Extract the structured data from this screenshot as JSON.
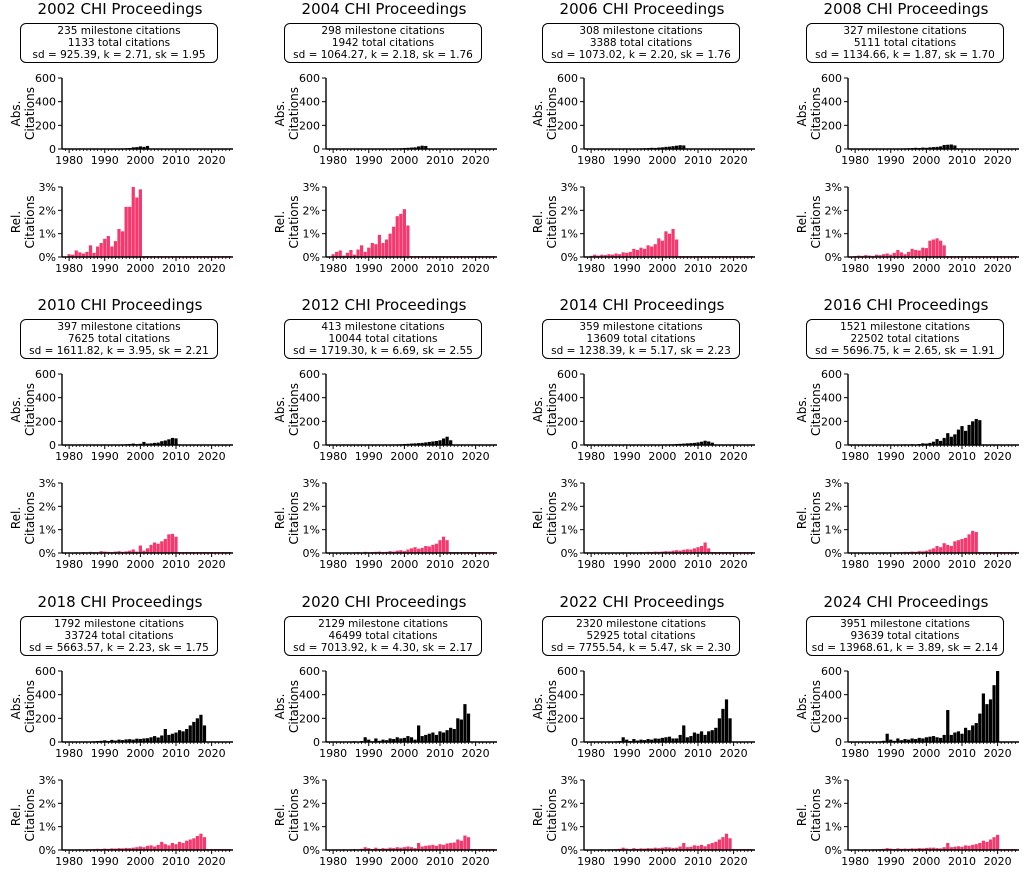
{
  "figure": {
    "abs_ylabel_lines": [
      "Abs.",
      "Citations"
    ],
    "rel_ylabel_lines": [
      "Rel.",
      "Citations"
    ],
    "abs_yticks": [
      "0",
      "200",
      "400",
      "600"
    ],
    "rel_yticks": [
      "0%",
      "1%",
      "2%",
      "3%"
    ],
    "xticks": [
      "1980",
      "1990",
      "2000",
      "2010",
      "2020"
    ],
    "abs_color": "#000000",
    "rel_color": "#f5386d"
  },
  "chart_data": [
    {
      "type": "bar",
      "title": "2002 CHI Proceedings",
      "stats": [
        "235 milestone citations",
        "1133 total citations",
        "sd = 925.39, k = 2.71, sk = 1.95"
      ],
      "x_start": 1980,
      "xlim": [
        1978,
        2026
      ],
      "abs_ylim": [
        0,
        600
      ],
      "rel_ylim": [
        0,
        3
      ],
      "abs": [
        0,
        0,
        0,
        0,
        0,
        0,
        0,
        0,
        0,
        0,
        0,
        1,
        2,
        2,
        3,
        5,
        6,
        8,
        14,
        16,
        22,
        18,
        26
      ],
      "rel": [
        0.12,
        0.1,
        0.28,
        0.2,
        0.15,
        0.22,
        0.5,
        0.18,
        0.45,
        0.6,
        0.78,
        0.9,
        0.45,
        0.68,
        1.2,
        1.1,
        2.15,
        2.15,
        3.0,
        2.55,
        2.9
      ]
    },
    {
      "type": "bar",
      "title": "2004 CHI Proceedings",
      "stats": [
        "298 milestone citations",
        "1942 total citations",
        "sd = 1064.27, k = 2.18, sk = 1.76"
      ],
      "x_start": 1980,
      "xlim": [
        1978,
        2026
      ],
      "abs_ylim": [
        0,
        600
      ],
      "rel_ylim": [
        0,
        3
      ],
      "abs": [
        0,
        0,
        0,
        0,
        0,
        0,
        0,
        0,
        0,
        0,
        0,
        0,
        0,
        1,
        2,
        3,
        4,
        5,
        4,
        6,
        8,
        10,
        12,
        14,
        22,
        28,
        26
      ],
      "rel": [
        0.12,
        0.22,
        0.28,
        0.06,
        0.18,
        0.3,
        0.1,
        0.32,
        0.5,
        0.22,
        0.4,
        0.6,
        0.55,
        0.95,
        0.6,
        0.75,
        1.0,
        1.3,
        1.75,
        1.85,
        2.05,
        1.35
      ]
    },
    {
      "type": "bar",
      "title": "2006 CHI Proceedings",
      "stats": [
        "308 milestone citations",
        "3388 total citations",
        "sd = 1073.02, k = 2.20, sk = 1.76"
      ],
      "x_start": 1980,
      "xlim": [
        1978,
        2026
      ],
      "abs_ylim": [
        0,
        600
      ],
      "rel_ylim": [
        0,
        3
      ],
      "abs": [
        0,
        0,
        0,
        0,
        0,
        0,
        0,
        0,
        0,
        1,
        2,
        2,
        3,
        4,
        5,
        6,
        8,
        10,
        9,
        12,
        14,
        18,
        20,
        24,
        28,
        32,
        30
      ],
      "rel": [
        0.05,
        0.1,
        0.06,
        0.1,
        0.08,
        0.12,
        0.1,
        0.15,
        0.12,
        0.2,
        0.18,
        0.22,
        0.35,
        0.3,
        0.4,
        0.35,
        0.5,
        0.45,
        0.55,
        0.8,
        0.7,
        1.1,
        1.0,
        1.2,
        0.75
      ]
    },
    {
      "type": "bar",
      "title": "2008 CHI Proceedings",
      "stats": [
        "327 milestone citations",
        "5111 total citations",
        "sd = 1134.66, k = 1.87, sk = 1.70"
      ],
      "x_start": 1980,
      "xlim": [
        1978,
        2026
      ],
      "abs_ylim": [
        0,
        600
      ],
      "rel_ylim": [
        0,
        3
      ],
      "abs": [
        0,
        0,
        0,
        0,
        0,
        0,
        0,
        0,
        0,
        0,
        0,
        2,
        3,
        4,
        5,
        6,
        8,
        10,
        8,
        12,
        10,
        14,
        16,
        18,
        22,
        34,
        36,
        38,
        30
      ],
      "rel": [
        0.04,
        0.06,
        0.05,
        0.08,
        0.06,
        0.05,
        0.1,
        0.08,
        0.12,
        0.15,
        0.1,
        0.18,
        0.3,
        0.2,
        0.12,
        0.22,
        0.35,
        0.3,
        0.28,
        0.4,
        0.38,
        0.7,
        0.75,
        0.8,
        0.7,
        0.5
      ]
    },
    {
      "type": "bar",
      "title": "2010 CHI Proceedings",
      "stats": [
        "397 milestone citations",
        "7625 total citations",
        "sd = 1611.82, k = 3.95, sk = 2.21"
      ],
      "x_start": 1980,
      "xlim": [
        1978,
        2026
      ],
      "abs_ylim": [
        0,
        600
      ],
      "rel_ylim": [
        0,
        3
      ],
      "abs": [
        0,
        0,
        0,
        0,
        0,
        0,
        0,
        0,
        0,
        0,
        0,
        1,
        2,
        3,
        4,
        5,
        6,
        8,
        12,
        7,
        10,
        26,
        12,
        14,
        18,
        20,
        32,
        38,
        48,
        60,
        56
      ],
      "rel": [
        0.01,
        0.02,
        0.03,
        0.02,
        0.04,
        0.03,
        0.05,
        0.04,
        0.03,
        0.08,
        0.06,
        0.05,
        0.04,
        0.06,
        0.08,
        0.05,
        0.07,
        0.1,
        0.15,
        0.06,
        0.32,
        0.1,
        0.2,
        0.35,
        0.45,
        0.4,
        0.5,
        0.6,
        0.8,
        0.82,
        0.7
      ]
    },
    {
      "type": "bar",
      "title": "2012 CHI Proceedings",
      "stats": [
        "413 milestone citations",
        "10044 total citations",
        "sd = 1719.30, k = 6.69, sk = 2.55"
      ],
      "x_start": 1980,
      "xlim": [
        1978,
        2026
      ],
      "abs_ylim": [
        0,
        600
      ],
      "rel_ylim": [
        0,
        3
      ],
      "abs": [
        0,
        0,
        0,
        0,
        0,
        0,
        0,
        0,
        0,
        0,
        0,
        0,
        0,
        0,
        0,
        2,
        3,
        4,
        5,
        6,
        8,
        10,
        12,
        14,
        16,
        18,
        22,
        26,
        30,
        34,
        40,
        55,
        70,
        40
      ],
      "rel": [
        0.01,
        0.01,
        0.02,
        0.02,
        0.03,
        0.02,
        0.03,
        0.04,
        0.02,
        0.05,
        0.03,
        0.04,
        0.05,
        0.06,
        0.04,
        0.05,
        0.08,
        0.06,
        0.1,
        0.12,
        0.08,
        0.15,
        0.2,
        0.25,
        0.18,
        0.22,
        0.3,
        0.28,
        0.35,
        0.4,
        0.55,
        0.7,
        0.55
      ]
    },
    {
      "type": "bar",
      "title": "2014 CHI Proceedings",
      "stats": [
        "359 milestone citations",
        "13609 total citations",
        "sd = 1238.39, k = 5.17, sk = 2.23"
      ],
      "x_start": 1980,
      "xlim": [
        1978,
        2026
      ],
      "abs_ylim": [
        0,
        600
      ],
      "rel_ylim": [
        0,
        3
      ],
      "abs": [
        0,
        0,
        0,
        0,
        0,
        0,
        0,
        0,
        0,
        0,
        0,
        0,
        0,
        0,
        0,
        0,
        0,
        0,
        0,
        0,
        0,
        0,
        5,
        6,
        8,
        10,
        12,
        14,
        16,
        18,
        22,
        28,
        36,
        30,
        20
      ],
      "rel": [
        0.01,
        0.01,
        0.01,
        0.02,
        0.01,
        0.02,
        0.02,
        0.01,
        0.02,
        0.03,
        0.02,
        0.03,
        0.03,
        0.02,
        0.04,
        0.03,
        0.05,
        0.04,
        0.06,
        0.05,
        0.06,
        0.08,
        0.07,
        0.1,
        0.12,
        0.1,
        0.14,
        0.16,
        0.15,
        0.2,
        0.25,
        0.3,
        0.45,
        0.2
      ]
    },
    {
      "type": "bar",
      "title": "2016 CHI Proceedings",
      "stats": [
        "1521 milestone citations",
        "22502 total citations",
        "sd = 5696.75, k = 2.65, sk = 1.91"
      ],
      "x_start": 1980,
      "xlim": [
        1978,
        2026
      ],
      "abs_ylim": [
        0,
        600
      ],
      "rel_ylim": [
        0,
        3
      ],
      "abs": [
        0,
        0,
        0,
        0,
        3,
        0,
        0,
        0,
        0,
        2,
        0,
        3,
        0,
        3,
        5,
        0,
        6,
        4,
        8,
        14,
        12,
        18,
        28,
        50,
        35,
        60,
        100,
        70,
        90,
        130,
        160,
        120,
        170,
        200,
        220,
        210
      ],
      "rel": [
        0.01,
        0.01,
        0.01,
        0.01,
        0.02,
        0.02,
        0.02,
        0.02,
        0.03,
        0.02,
        0.03,
        0.03,
        0.04,
        0.03,
        0.05,
        0.04,
        0.06,
        0.05,
        0.08,
        0.07,
        0.1,
        0.15,
        0.2,
        0.3,
        0.25,
        0.42,
        0.35,
        0.3,
        0.5,
        0.55,
        0.6,
        0.65,
        0.8,
        0.95,
        0.9
      ]
    },
    {
      "type": "bar",
      "title": "2018 CHI Proceedings",
      "stats": [
        "1792 milestone citations",
        "33724 total citations",
        "sd = 5663.57, k = 2.23, sk = 1.75"
      ],
      "x_start": 1980,
      "xlim": [
        1978,
        2026
      ],
      "abs_ylim": [
        0,
        600
      ],
      "rel_ylim": [
        0,
        3
      ],
      "abs": [
        0,
        3,
        2,
        4,
        3,
        5,
        4,
        6,
        8,
        10,
        14,
        8,
        18,
        12,
        20,
        16,
        22,
        24,
        20,
        28,
        26,
        30,
        32,
        40,
        50,
        38,
        55,
        110,
        60,
        70,
        80,
        100,
        90,
        110,
        140,
        170,
        200,
        230,
        140
      ],
      "rel": [
        0.01,
        0.02,
        0.02,
        0.03,
        0.02,
        0.03,
        0.03,
        0.04,
        0.05,
        0.04,
        0.06,
        0.05,
        0.07,
        0.06,
        0.08,
        0.07,
        0.09,
        0.08,
        0.1,
        0.12,
        0.15,
        0.12,
        0.18,
        0.2,
        0.15,
        0.22,
        0.35,
        0.25,
        0.2,
        0.3,
        0.25,
        0.35,
        0.3,
        0.4,
        0.45,
        0.5,
        0.6,
        0.7,
        0.55
      ]
    },
    {
      "type": "bar",
      "title": "2020 CHI Proceedings",
      "stats": [
        "2129 milestone citations",
        "46499 total citations",
        "sd = 7013.92, k = 4.30, sk = 2.17"
      ],
      "x_start": 1980,
      "xlim": [
        1978,
        2026
      ],
      "abs_ylim": [
        0,
        600
      ],
      "rel_ylim": [
        0,
        3
      ],
      "abs": [
        0,
        2,
        3,
        4,
        3,
        5,
        6,
        4,
        8,
        40,
        20,
        6,
        30,
        10,
        20,
        15,
        30,
        25,
        40,
        30,
        35,
        50,
        40,
        20,
        140,
        50,
        60,
        70,
        80,
        60,
        90,
        80,
        100,
        120,
        110,
        200,
        190,
        320,
        240
      ],
      "rel": [
        0.01,
        0.02,
        0.02,
        0.03,
        0.02,
        0.03,
        0.04,
        0.03,
        0.05,
        0.12,
        0.08,
        0.04,
        0.1,
        0.05,
        0.08,
        0.06,
        0.1,
        0.08,
        0.12,
        0.1,
        0.12,
        0.15,
        0.12,
        0.08,
        0.3,
        0.15,
        0.18,
        0.2,
        0.22,
        0.18,
        0.25,
        0.22,
        0.28,
        0.3,
        0.32,
        0.45,
        0.4,
        0.62,
        0.55
      ]
    },
    {
      "type": "bar",
      "title": "2022 CHI Proceedings",
      "stats": [
        "2320 milestone citations",
        "52925 total citations",
        "sd = 7755.54, k = 5.47, sk = 2.30"
      ],
      "x_start": 1980,
      "xlim": [
        1978,
        2026
      ],
      "abs_ylim": [
        0,
        600
      ],
      "rel_ylim": [
        0,
        3
      ],
      "abs": [
        0,
        2,
        3,
        4,
        3,
        5,
        4,
        6,
        8,
        40,
        20,
        8,
        25,
        12,
        20,
        16,
        25,
        20,
        30,
        28,
        35,
        40,
        45,
        30,
        30,
        60,
        140,
        40,
        50,
        80,
        70,
        90,
        60,
        90,
        100,
        120,
        200,
        280,
        360,
        200
      ],
      "rel": [
        0.01,
        0.02,
        0.02,
        0.03,
        0.02,
        0.03,
        0.03,
        0.04,
        0.05,
        0.1,
        0.06,
        0.04,
        0.08,
        0.05,
        0.07,
        0.06,
        0.08,
        0.07,
        0.1,
        0.08,
        0.1,
        0.12,
        0.11,
        0.09,
        0.1,
        0.15,
        0.3,
        0.12,
        0.14,
        0.2,
        0.18,
        0.22,
        0.16,
        0.25,
        0.3,
        0.35,
        0.45,
        0.55,
        0.7,
        0.5
      ]
    },
    {
      "type": "bar",
      "title": "2024 CHI Proceedings",
      "stats": [
        "3951 milestone citations",
        "93639 total citations",
        "sd = 13968.61, k = 3.89, sk = 2.14"
      ],
      "x_start": 1980,
      "xlim": [
        1978,
        2026
      ],
      "abs_ylim": [
        0,
        600
      ],
      "rel_ylim": [
        0,
        3
      ],
      "abs": [
        0,
        2,
        3,
        4,
        3,
        5,
        4,
        6,
        10,
        70,
        20,
        10,
        30,
        15,
        25,
        20,
        30,
        25,
        35,
        30,
        40,
        45,
        50,
        40,
        35,
        60,
        270,
        60,
        80,
        90,
        70,
        120,
        100,
        140,
        160,
        240,
        410,
        320,
        360,
        480,
        600
      ],
      "rel": [
        0.01,
        0.02,
        0.02,
        0.03,
        0.02,
        0.03,
        0.03,
        0.04,
        0.05,
        0.08,
        0.06,
        0.04,
        0.07,
        0.05,
        0.06,
        0.05,
        0.07,
        0.06,
        0.08,
        0.07,
        0.09,
        0.1,
        0.1,
        0.08,
        0.07,
        0.12,
        0.3,
        0.12,
        0.14,
        0.16,
        0.14,
        0.2,
        0.18,
        0.22,
        0.25,
        0.3,
        0.4,
        0.35,
        0.45,
        0.55,
        0.65
      ]
    }
  ]
}
